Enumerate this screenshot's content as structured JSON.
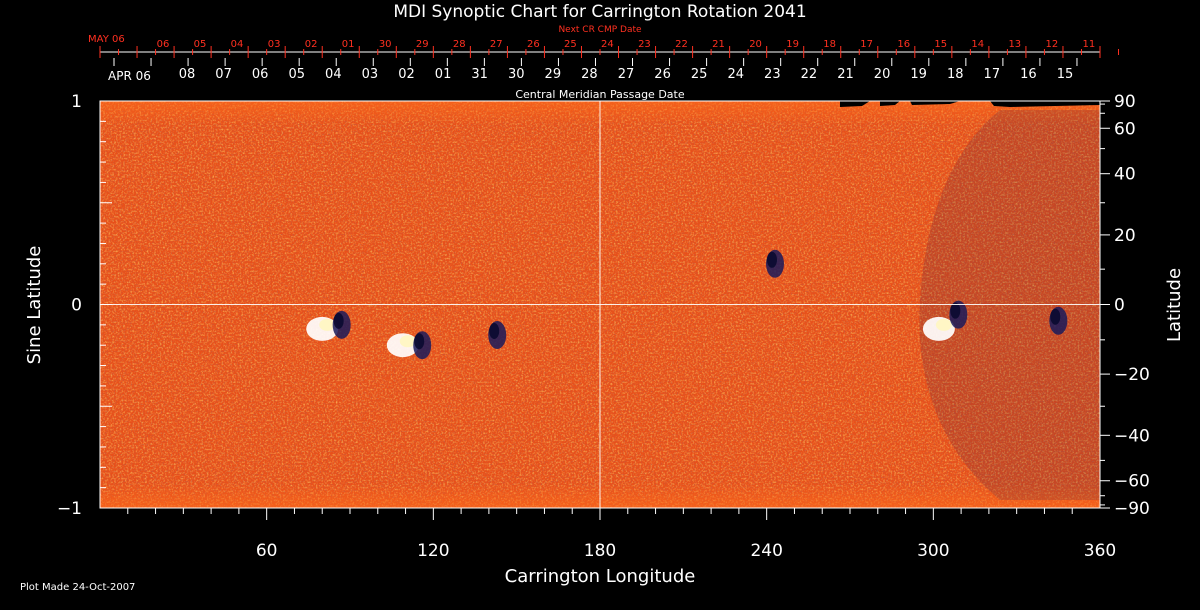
{
  "chart_data": {
    "type": "heatmap",
    "title": "MDI Synoptic Chart for Carrington Rotation 2041",
    "xlabel": "Carrington Longitude",
    "ylabel_left": "Sine Latitude",
    "ylabel_right": "Latitude",
    "xlim": [
      0,
      360
    ],
    "ylim": [
      -1,
      1
    ],
    "x_ticks": [
      60,
      120,
      180,
      240,
      300,
      360
    ],
    "y_ticks_left": [
      {
        "value": 1,
        "label": "1"
      },
      {
        "value": 0,
        "label": "0"
      },
      {
        "value": -1,
        "label": "−1"
      }
    ],
    "y_ticks_right": [
      90,
      60,
      40,
      20,
      0,
      -20,
      -40,
      -60,
      -90
    ],
    "gridlines": {
      "x": [
        180
      ],
      "y": [
        0
      ]
    },
    "top_axis_red": {
      "label": "Next CR CMP Date",
      "first_label": "MAY 06",
      "dates": [
        "06",
        "05",
        "04",
        "03",
        "02",
        "01",
        "30",
        "29",
        "28",
        "27",
        "26",
        "25",
        "24",
        "23",
        "22",
        "21",
        "20",
        "19",
        "18",
        "17",
        "16",
        "15",
        "14",
        "13",
        "12",
        "11"
      ],
      "color": "#ff3020"
    },
    "top_axis_white": {
      "label": "Central Meridian Passage Date",
      "first_label": "APR 06",
      "dates": [
        "08",
        "07",
        "06",
        "05",
        "04",
        "03",
        "02",
        "01",
        "31",
        "30",
        "29",
        "28",
        "27",
        "26",
        "25",
        "24",
        "23",
        "22",
        "21",
        "20",
        "19",
        "18",
        "17",
        "16",
        "15"
      ]
    },
    "features": [
      {
        "polarity": "positive",
        "lon": 80,
        "sinlat": -0.12
      },
      {
        "polarity": "negative",
        "lon": 87,
        "sinlat": -0.1
      },
      {
        "polarity": "positive",
        "lon": 109,
        "sinlat": -0.2
      },
      {
        "polarity": "negative",
        "lon": 116,
        "sinlat": -0.2
      },
      {
        "polarity": "negative",
        "lon": 143,
        "sinlat": -0.15
      },
      {
        "polarity": "negative",
        "lon": 243,
        "sinlat": 0.2
      },
      {
        "polarity": "positive",
        "lon": 302,
        "sinlat": -0.12
      },
      {
        "polarity": "negative",
        "lon": 309,
        "sinlat": -0.05
      },
      {
        "polarity": "negative",
        "lon": 345,
        "sinlat": -0.08
      }
    ],
    "colors": {
      "background": "#000000",
      "map_base": "#e8501a",
      "positive": "#ffffff",
      "negative": "#1a1a5a",
      "axis": "#ffffff"
    }
  },
  "footer": {
    "plot_made": "Plot Made 24-Oct-2007"
  }
}
